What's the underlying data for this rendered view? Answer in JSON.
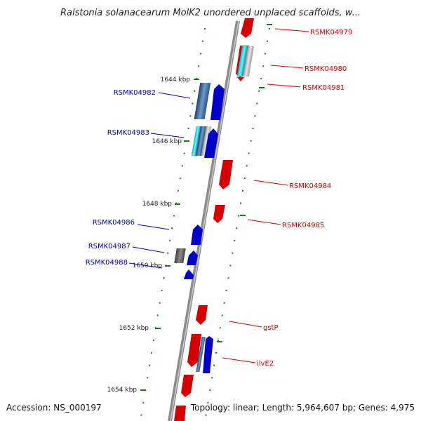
{
  "title": "Ralstonia solanacearum MolK2 unordered unplaced scaffolds, w...",
  "footer": {
    "accession": "Accession: NS_000197",
    "topology": "Topology: linear; Length: 5,964,607 bp; Genes: 4,975"
  },
  "kbp_labels": [
    "1644 kbp",
    "1646 kbp",
    "1648 kbp",
    "1650 kbp",
    "1652 kbp",
    "1654 kbp"
  ],
  "genes_right": [
    "RSMK04979",
    "RSMK04980",
    "RSMK04981",
    "RSMK04984",
    "RSMK04985",
    "gstP",
    "ilvE2"
  ],
  "genes_left": [
    "RSMK04982",
    "RSMK04983",
    "RSMK04986",
    "RSMK04987",
    "RSMK04988"
  ],
  "colors": {
    "forward": "#0000c8",
    "reverse": "#d40000",
    "axis": "#8c8c8c",
    "ticks": "#1a7a1a"
  }
}
